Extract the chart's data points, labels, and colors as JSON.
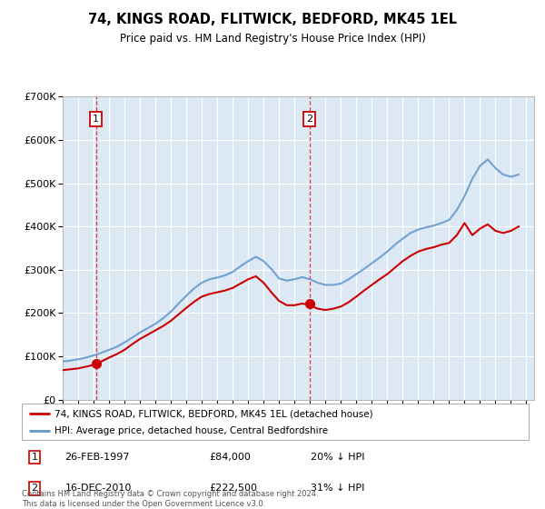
{
  "title": "74, KINGS ROAD, FLITWICK, BEDFORD, MK45 1EL",
  "subtitle": "Price paid vs. HM Land Registry's House Price Index (HPI)",
  "background_color": "#dce9f5",
  "plot_bg_color": "#dce9f5",
  "grid_color": "#ffffff",
  "legend_label_red": "74, KINGS ROAD, FLITWICK, BEDFORD, MK45 1EL (detached house)",
  "legend_label_blue": "HPI: Average price, detached house, Central Bedfordshire",
  "footer": "Contains HM Land Registry data © Crown copyright and database right 2024.\nThis data is licensed under the Open Government Licence v3.0.",
  "annotation1_label": "1",
  "annotation1_date": "26-FEB-1997",
  "annotation1_price": "£84,000",
  "annotation1_hpi": "20% ↓ HPI",
  "annotation2_label": "2",
  "annotation2_date": "16-DEC-2010",
  "annotation2_price": "£222,500",
  "annotation2_hpi": "31% ↓ HPI",
  "sale1_x": 1997.15,
  "sale1_y": 84000,
  "sale2_x": 2010.96,
  "sale2_y": 222500,
  "ylim": [
    0,
    700000
  ],
  "xlim": [
    1995.0,
    2025.5
  ],
  "red_color": "#cc0000",
  "blue_color": "#6699cc",
  "marker_color": "#cc0000",
  "hpi_years": [
    1995,
    1995.5,
    1996,
    1996.5,
    1997,
    1997.5,
    1998,
    1998.5,
    1999,
    1999.5,
    2000,
    2000.5,
    2001,
    2001.5,
    2002,
    2002.5,
    2003,
    2003.5,
    2004,
    2004.5,
    2005,
    2005.5,
    2006,
    2006.5,
    2007,
    2007.5,
    2008,
    2008.5,
    2009,
    2009.5,
    2010,
    2010.5,
    2011,
    2011.5,
    2012,
    2012.5,
    2013,
    2013.5,
    2014,
    2014.5,
    2015,
    2015.5,
    2016,
    2016.5,
    2017,
    2017.5,
    2018,
    2018.5,
    2019,
    2019.5,
    2020,
    2020.5,
    2021,
    2021.5,
    2022,
    2022.5,
    2023,
    2023.5,
    2024,
    2024.5
  ],
  "hpi_values": [
    88000,
    90000,
    93000,
    97000,
    102000,
    108000,
    115000,
    122000,
    132000,
    143000,
    155000,
    165000,
    175000,
    188000,
    203000,
    222000,
    240000,
    257000,
    270000,
    278000,
    282000,
    287000,
    295000,
    308000,
    320000,
    330000,
    320000,
    302000,
    280000,
    275000,
    278000,
    283000,
    278000,
    270000,
    265000,
    265000,
    268000,
    278000,
    290000,
    302000,
    315000,
    328000,
    342000,
    358000,
    372000,
    385000,
    393000,
    398000,
    402000,
    408000,
    415000,
    438000,
    470000,
    510000,
    540000,
    555000,
    535000,
    520000,
    515000,
    520000
  ],
  "prop_years": [
    1995,
    1995.5,
    1996,
    1996.5,
    1997,
    1997.5,
    1998,
    1998.5,
    1999,
    1999.5,
    2000,
    2000.5,
    2001,
    2001.5,
    2002,
    2002.5,
    2003,
    2003.5,
    2004,
    2004.5,
    2005,
    2005.5,
    2006,
    2006.5,
    2007,
    2007.5,
    2008,
    2008.5,
    2009,
    2009.5,
    2010,
    2010.5,
    2011,
    2011.5,
    2012,
    2012.5,
    2013,
    2013.5,
    2014,
    2014.5,
    2015,
    2015.5,
    2016,
    2016.5,
    2017,
    2017.5,
    2018,
    2018.5,
    2019,
    2019.5,
    2020,
    2020.5,
    2021,
    2021.5,
    2022,
    2022.5,
    2023,
    2023.5,
    2024,
    2024.5
  ],
  "prop_values": [
    68000,
    70000,
    72000,
    76000,
    80000,
    88000,
    97000,
    105000,
    115000,
    128000,
    140000,
    150000,
    160000,
    170000,
    182000,
    197000,
    212000,
    226000,
    238000,
    244000,
    248000,
    252000,
    258000,
    268000,
    278000,
    285000,
    270000,
    248000,
    228000,
    218000,
    218000,
    222000,
    218000,
    210000,
    207000,
    210000,
    215000,
    225000,
    238000,
    252000,
    265000,
    278000,
    290000,
    305000,
    320000,
    332000,
    342000,
    348000,
    352000,
    358000,
    362000,
    380000,
    408000,
    380000,
    395000,
    405000,
    390000,
    385000,
    390000,
    400000
  ]
}
